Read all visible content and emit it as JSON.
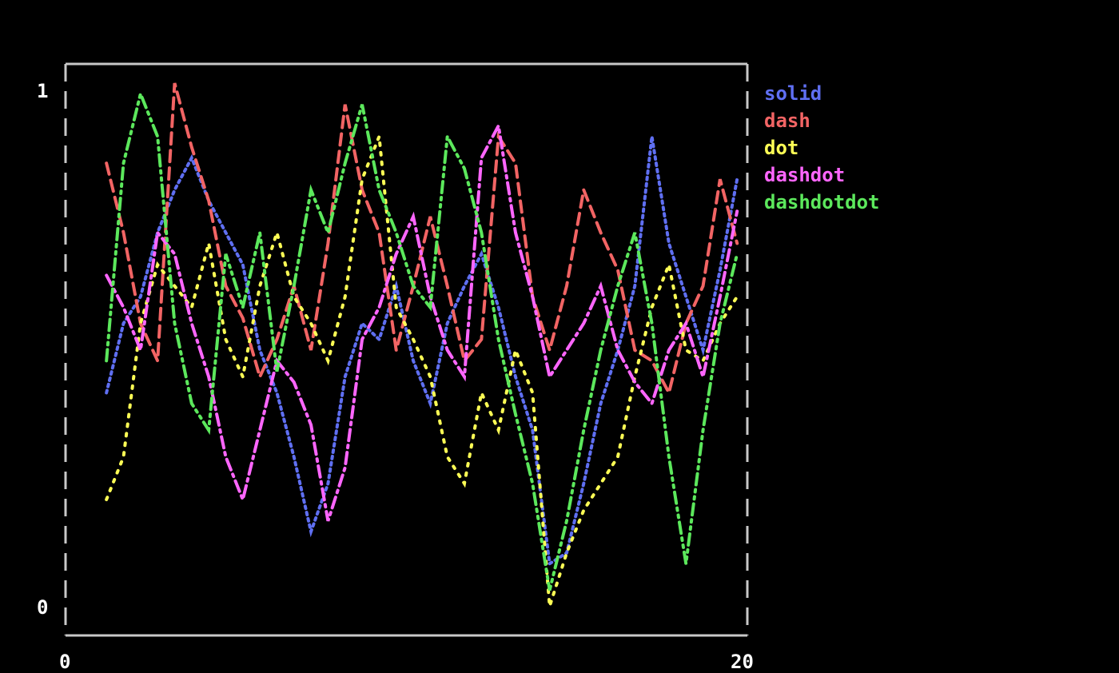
{
  "chart_data": {
    "type": "line",
    "title": "",
    "xlabel": "",
    "ylabel": "",
    "xlim": [
      0,
      20
    ],
    "ylim": [
      0,
      1
    ],
    "x_tick_labels": [
      "0",
      "20"
    ],
    "y_tick_labels": [
      "1",
      "0"
    ],
    "grid": false,
    "legend_placement": "right",
    "x": [
      1.2,
      1.7,
      2.2,
      2.7,
      3.2,
      3.7,
      4.2,
      4.7,
      5.2,
      5.7,
      6.2,
      6.7,
      7.2,
      7.7,
      8.2,
      8.7,
      9.2,
      9.7,
      10.2,
      10.7,
      11.2,
      11.7,
      12.2,
      12.7,
      13.2,
      13.7,
      14.2,
      14.7,
      15.2,
      15.7,
      16.2,
      16.7,
      17.2,
      17.7,
      18.2,
      18.7,
      19.2,
      19.7
    ],
    "series": [
      {
        "name": "solid",
        "color": "#5f6ff2",
        "dash": "solid",
        "values": [
          0.42,
          0.55,
          0.6,
          0.72,
          0.8,
          0.86,
          0.78,
          0.72,
          0.66,
          0.5,
          0.42,
          0.3,
          0.16,
          0.25,
          0.45,
          0.55,
          0.52,
          0.62,
          0.48,
          0.4,
          0.55,
          0.62,
          0.68,
          0.58,
          0.45,
          0.35,
          0.1,
          0.12,
          0.25,
          0.4,
          0.5,
          0.62,
          0.9,
          0.7,
          0.6,
          0.5,
          0.65,
          0.82
        ]
      },
      {
        "name": "dash",
        "color": "#f26464",
        "dash": "dash",
        "values": [
          0.85,
          0.72,
          0.55,
          0.48,
          1.0,
          0.88,
          0.78,
          0.62,
          0.56,
          0.45,
          0.52,
          0.62,
          0.5,
          0.7,
          0.96,
          0.8,
          0.72,
          0.5,
          0.62,
          0.75,
          0.62,
          0.48,
          0.52,
          0.9,
          0.85,
          0.6,
          0.5,
          0.62,
          0.8,
          0.72,
          0.65,
          0.5,
          0.48,
          0.42,
          0.55,
          0.62,
          0.82,
          0.7
        ]
      },
      {
        "name": "dot",
        "color": "#ffff55",
        "dash": "dot",
        "values": [
          0.22,
          0.3,
          0.55,
          0.66,
          0.62,
          0.58,
          0.7,
          0.52,
          0.45,
          0.62,
          0.72,
          0.6,
          0.55,
          0.48,
          0.6,
          0.82,
          0.9,
          0.58,
          0.52,
          0.45,
          0.3,
          0.25,
          0.42,
          0.35,
          0.5,
          0.42,
          0.02,
          0.12,
          0.2,
          0.25,
          0.3,
          0.45,
          0.58,
          0.66,
          0.5,
          0.48,
          0.55,
          0.6
        ]
      },
      {
        "name": "dashdot",
        "color": "#ff66ff",
        "dash": "dashdot",
        "values": [
          0.64,
          0.58,
          0.5,
          0.72,
          0.68,
          0.55,
          0.45,
          0.3,
          0.22,
          0.35,
          0.48,
          0.44,
          0.36,
          0.18,
          0.28,
          0.52,
          0.58,
          0.68,
          0.75,
          0.6,
          0.5,
          0.45,
          0.86,
          0.92,
          0.72,
          0.6,
          0.45,
          0.5,
          0.55,
          0.62,
          0.5,
          0.44,
          0.4,
          0.5,
          0.55,
          0.45,
          0.6,
          0.76
        ]
      },
      {
        "name": "dashdotdot",
        "color": "#5ce85c",
        "dash": "dashdotdot",
        "values": [
          0.48,
          0.85,
          0.98,
          0.9,
          0.55,
          0.4,
          0.35,
          0.68,
          0.58,
          0.72,
          0.46,
          0.62,
          0.8,
          0.72,
          0.85,
          0.96,
          0.8,
          0.72,
          0.62,
          0.58,
          0.9,
          0.84,
          0.72,
          0.52,
          0.38,
          0.25,
          0.05,
          0.18,
          0.35,
          0.5,
          0.62,
          0.72,
          0.55,
          0.3,
          0.1,
          0.35,
          0.55,
          0.68
        ]
      }
    ]
  }
}
